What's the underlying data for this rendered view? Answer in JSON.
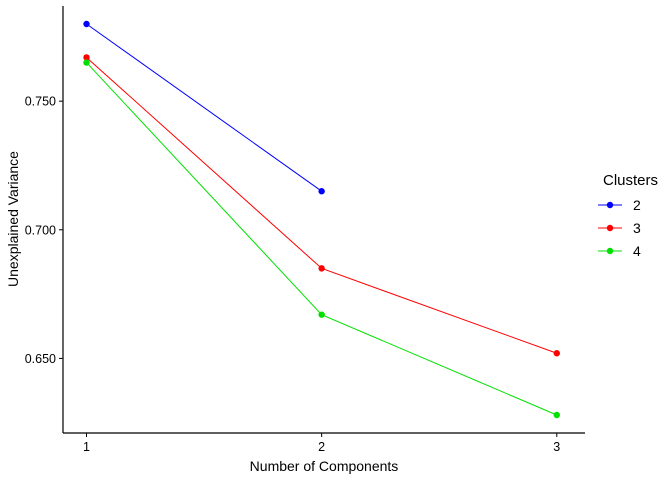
{
  "chart_data": {
    "type": "line",
    "x": [
      1,
      2,
      3
    ],
    "x_tick_labels": [
      "1",
      "2",
      "3"
    ],
    "y_ticks": [
      0.65,
      0.7,
      0.75
    ],
    "y_tick_labels": [
      "0.650",
      "0.700",
      "0.750"
    ],
    "xlabel": "Number of Components",
    "ylabel": "Unexplained Variance",
    "xlim": [
      0.9,
      3.12
    ],
    "ylim": [
      0.621,
      0.787
    ],
    "grid": false,
    "background": "#FFFFFF",
    "axis_color": "#000000",
    "legend": {
      "title": "Clusters",
      "position": "right"
    },
    "series": [
      {
        "name": "2",
        "color": "#0000FF",
        "values": [
          0.78,
          0.715,
          null
        ]
      },
      {
        "name": "3",
        "color": "#FF0000",
        "values": [
          0.767,
          0.685,
          0.652
        ]
      },
      {
        "name": "4",
        "color": "#00E000",
        "values": [
          0.765,
          0.667,
          0.628
        ]
      }
    ]
  }
}
